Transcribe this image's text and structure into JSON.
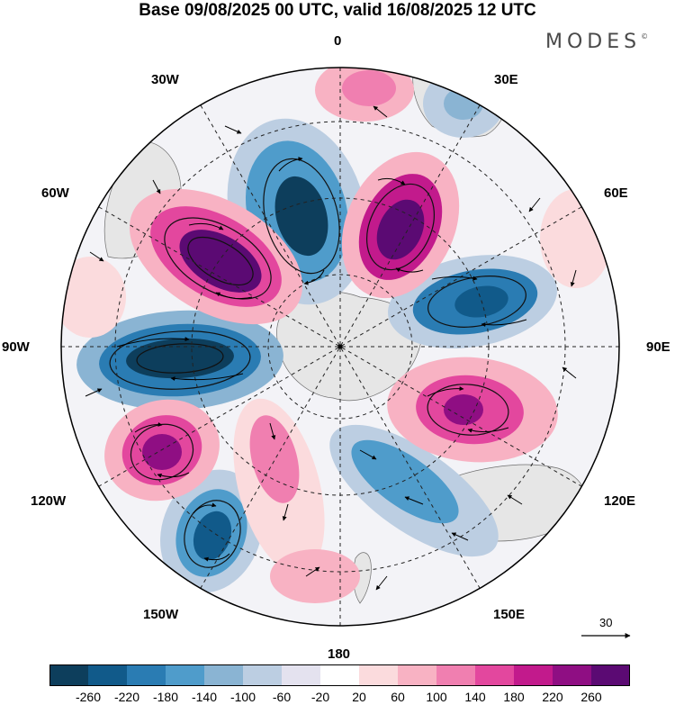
{
  "title": "Base 09/08/2025 00 UTC, valid 16/08/2025 12 UTC",
  "brand": {
    "name": "MODES",
    "mark": "©"
  },
  "map": {
    "projection": "south-polar-stereographic",
    "longitude_labels": [
      {
        "id": "lon-0",
        "text": "0"
      },
      {
        "id": "lon-30e",
        "text": "30E"
      },
      {
        "id": "lon-60e",
        "text": "60E"
      },
      {
        "id": "lon-90e",
        "text": "90E"
      },
      {
        "id": "lon-120e",
        "text": "120E"
      },
      {
        "id": "lon-150e",
        "text": "150E"
      },
      {
        "id": "lon-180",
        "text": "180"
      },
      {
        "id": "lon-150w",
        "text": "150W"
      },
      {
        "id": "lon-120w",
        "text": "120W"
      },
      {
        "id": "lon-90w",
        "text": "90W"
      },
      {
        "id": "lon-60w",
        "text": "60W"
      },
      {
        "id": "lon-30w",
        "text": "30W"
      }
    ],
    "reference_vector": "30"
  },
  "colorbar": {
    "colors": [
      "#0d3e5c",
      "#115a8a",
      "#2a7cb3",
      "#4f9ccb",
      "#8ab4d3",
      "#bccee2",
      "#e4e2ef",
      "#ffffff",
      "#fbdbdd",
      "#f8b2c3",
      "#f07fb0",
      "#e3479e",
      "#c21a8c",
      "#8f0e83",
      "#5b0a73"
    ],
    "tick_labels": [
      "-260",
      "-220",
      "-180",
      "-140",
      "-100",
      "-60",
      "-20",
      "20",
      "60",
      "100",
      "140",
      "180",
      "220",
      "260"
    ]
  }
}
